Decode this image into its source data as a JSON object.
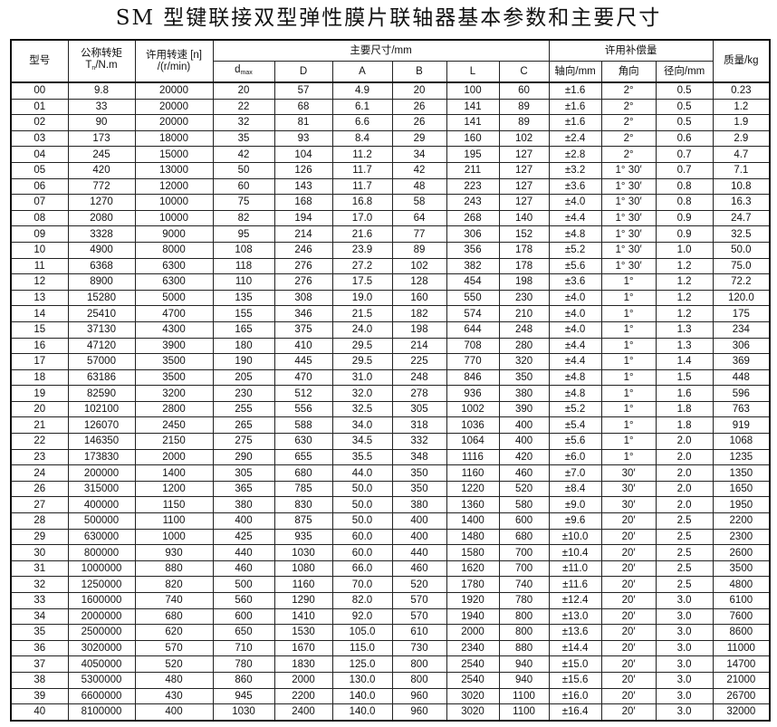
{
  "title": "SM 型键联接双型弹性膜片联轴器基本参数和主要尺寸",
  "headers": {
    "model": "型号",
    "torque_line1": "公称转矩",
    "torque_line2_T": "T",
    "torque_line2_sub": "n",
    "torque_line2_unit": "/N.m",
    "speed_line1": "许用转速 [n]",
    "speed_line2": "/(r/min)",
    "dimensions": "主要尺寸/mm",
    "dmax_d": "d",
    "dmax_sub": "max",
    "D": "D",
    "A": "A",
    "B": "B",
    "L": "L",
    "C": "C",
    "compensation": "许用补偿量",
    "axial": "轴向/mm",
    "angular": "角向",
    "radial": "径向/mm",
    "mass": "质量/kg"
  },
  "rows": [
    [
      "00",
      "9.8",
      "20000",
      "20",
      "57",
      "4.9",
      "20",
      "100",
      "60",
      "±1.6",
      "2°",
      "0.5",
      "0.23"
    ],
    [
      "01",
      "33",
      "20000",
      "22",
      "68",
      "6.1",
      "26",
      "141",
      "89",
      "±1.6",
      "2°",
      "0.5",
      "1.2"
    ],
    [
      "02",
      "90",
      "20000",
      "32",
      "81",
      "6.6",
      "26",
      "141",
      "89",
      "±1.6",
      "2°",
      "0.5",
      "1.9"
    ],
    [
      "03",
      "173",
      "18000",
      "35",
      "93",
      "8.4",
      "29",
      "160",
      "102",
      "±2.4",
      "2°",
      "0.6",
      "2.9"
    ],
    [
      "04",
      "245",
      "15000",
      "42",
      "104",
      "11.2",
      "34",
      "195",
      "127",
      "±2.8",
      "2°",
      "0.7",
      "4.7"
    ],
    [
      "05",
      "420",
      "13000",
      "50",
      "126",
      "11.7",
      "42",
      "211",
      "127",
      "±3.2",
      "1° 30′",
      "0.7",
      "7.1"
    ],
    [
      "06",
      "772",
      "12000",
      "60",
      "143",
      "11.7",
      "48",
      "223",
      "127",
      "±3.6",
      "1° 30′",
      "0.8",
      "10.8"
    ],
    [
      "07",
      "1270",
      "10000",
      "75",
      "168",
      "16.8",
      "58",
      "243",
      "127",
      "±4.0",
      "1° 30′",
      "0.8",
      "16.3"
    ],
    [
      "08",
      "2080",
      "10000",
      "82",
      "194",
      "17.0",
      "64",
      "268",
      "140",
      "±4.4",
      "1° 30′",
      "0.9",
      "24.7"
    ],
    [
      "09",
      "3328",
      "9000",
      "95",
      "214",
      "21.6",
      "77",
      "306",
      "152",
      "±4.8",
      "1° 30′",
      "0.9",
      "32.5"
    ],
    [
      "10",
      "4900",
      "8000",
      "108",
      "246",
      "23.9",
      "89",
      "356",
      "178",
      "±5.2",
      "1° 30′",
      "1.0",
      "50.0"
    ],
    [
      "11",
      "6368",
      "6300",
      "118",
      "276",
      "27.2",
      "102",
      "382",
      "178",
      "±5.6",
      "1° 30′",
      "1.2",
      "75.0"
    ],
    [
      "12",
      "8900",
      "6300",
      "110",
      "276",
      "17.5",
      "128",
      "454",
      "198",
      "±3.6",
      "1°",
      "1.2",
      "72.2"
    ],
    [
      "13",
      "15280",
      "5000",
      "135",
      "308",
      "19.0",
      "160",
      "550",
      "230",
      "±4.0",
      "1°",
      "1.2",
      "120.0"
    ],
    [
      "14",
      "25410",
      "4700",
      "155",
      "346",
      "21.5",
      "182",
      "574",
      "210",
      "±4.0",
      "1°",
      "1.2",
      "175"
    ],
    [
      "15",
      "37130",
      "4300",
      "165",
      "375",
      "24.0",
      "198",
      "644",
      "248",
      "±4.0",
      "1°",
      "1.3",
      "234"
    ],
    [
      "16",
      "47120",
      "3900",
      "180",
      "410",
      "29.5",
      "214",
      "708",
      "280",
      "±4.4",
      "1°",
      "1.3",
      "306"
    ],
    [
      "17",
      "57000",
      "3500",
      "190",
      "445",
      "29.5",
      "225",
      "770",
      "320",
      "±4.4",
      "1°",
      "1.4",
      "369"
    ],
    [
      "18",
      "63186",
      "3500",
      "205",
      "470",
      "31.0",
      "248",
      "846",
      "350",
      "±4.8",
      "1°",
      "1.5",
      "448"
    ],
    [
      "19",
      "82590",
      "3200",
      "230",
      "512",
      "32.0",
      "278",
      "936",
      "380",
      "±4.8",
      "1°",
      "1.6",
      "596"
    ],
    [
      "20",
      "102100",
      "2800",
      "255",
      "556",
      "32.5",
      "305",
      "1002",
      "390",
      "±5.2",
      "1°",
      "1.8",
      "763"
    ],
    [
      "21",
      "126070",
      "2450",
      "265",
      "588",
      "34.0",
      "318",
      "1036",
      "400",
      "±5.4",
      "1°",
      "1.8",
      "919"
    ],
    [
      "22",
      "146350",
      "2150",
      "275",
      "630",
      "34.5",
      "332",
      "1064",
      "400",
      "±5.6",
      "1°",
      "2.0",
      "1068"
    ],
    [
      "23",
      "173830",
      "2000",
      "290",
      "655",
      "35.5",
      "348",
      "1116",
      "420",
      "±6.0",
      "1°",
      "2.0",
      "1235"
    ],
    [
      "24",
      "200000",
      "1400",
      "305",
      "680",
      "44.0",
      "350",
      "1160",
      "460",
      "±7.0",
      "30′",
      "2.0",
      "1350"
    ],
    [
      "26",
      "315000",
      "1200",
      "365",
      "785",
      "50.0",
      "350",
      "1220",
      "520",
      "±8.4",
      "30′",
      "2.0",
      "1650"
    ],
    [
      "27",
      "400000",
      "1150",
      "380",
      "830",
      "50.0",
      "380",
      "1360",
      "580",
      "±9.0",
      "30′",
      "2.0",
      "1950"
    ],
    [
      "28",
      "500000",
      "1100",
      "400",
      "875",
      "50.0",
      "400",
      "1400",
      "600",
      "±9.6",
      "20′",
      "2.5",
      "2200"
    ],
    [
      "29",
      "630000",
      "1000",
      "425",
      "935",
      "60.0",
      "400",
      "1480",
      "680",
      "±10.0",
      "20′",
      "2.5",
      "2300"
    ],
    [
      "30",
      "800000",
      "930",
      "440",
      "1030",
      "60.0",
      "440",
      "1580",
      "700",
      "±10.4",
      "20′",
      "2.5",
      "2600"
    ],
    [
      "31",
      "1000000",
      "880",
      "460",
      "1080",
      "66.0",
      "460",
      "1620",
      "700",
      "±11.0",
      "20′",
      "2.5",
      "3500"
    ],
    [
      "32",
      "1250000",
      "820",
      "500",
      "1160",
      "70.0",
      "520",
      "1780",
      "740",
      "±11.6",
      "20′",
      "2.5",
      "4800"
    ],
    [
      "33",
      "1600000",
      "740",
      "560",
      "1290",
      "82.0",
      "570",
      "1920",
      "780",
      "±12.4",
      "20′",
      "3.0",
      "6100"
    ],
    [
      "34",
      "2000000",
      "680",
      "600",
      "1410",
      "92.0",
      "570",
      "1940",
      "800",
      "±13.0",
      "20′",
      "3.0",
      "7600"
    ],
    [
      "35",
      "2500000",
      "620",
      "650",
      "1530",
      "105.0",
      "610",
      "2000",
      "800",
      "±13.6",
      "20′",
      "3.0",
      "8600"
    ],
    [
      "36",
      "3020000",
      "570",
      "710",
      "1670",
      "115.0",
      "730",
      "2340",
      "880",
      "±14.4",
      "20′",
      "3.0",
      "11000"
    ],
    [
      "37",
      "4050000",
      "520",
      "780",
      "1830",
      "125.0",
      "800",
      "2540",
      "940",
      "±15.0",
      "20′",
      "3.0",
      "14700"
    ],
    [
      "38",
      "5300000",
      "480",
      "860",
      "2000",
      "130.0",
      "800",
      "2540",
      "940",
      "±15.6",
      "20′",
      "3.0",
      "21000"
    ],
    [
      "39",
      "6600000",
      "430",
      "945",
      "2200",
      "140.0",
      "960",
      "3020",
      "1100",
      "±16.0",
      "20′",
      "3.0",
      "26700"
    ],
    [
      "40",
      "8100000",
      "400",
      "1030",
      "2400",
      "140.0",
      "960",
      "3020",
      "1100",
      "±16.4",
      "20′",
      "3.0",
      "32000"
    ]
  ]
}
